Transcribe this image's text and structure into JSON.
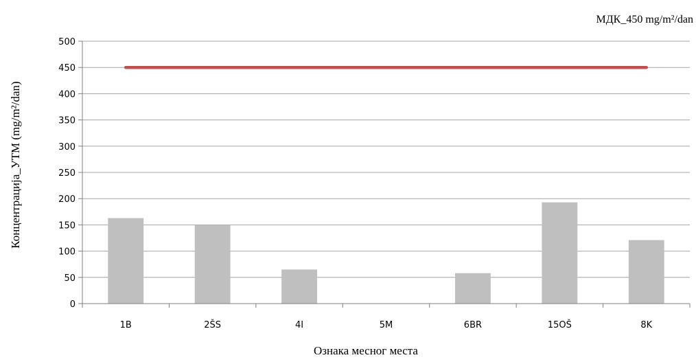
{
  "chart_data": {
    "type": "bar",
    "title": "",
    "xlabel": "Ознака месног места",
    "ylabel": "Концентрација_УТМ (mg/m²/dan)",
    "categories": [
      "1B",
      "2ŠS",
      "4I",
      "5M",
      "6BR",
      "15OŠ",
      "8K"
    ],
    "series": [
      {
        "values": [
          163,
          150,
          65,
          0,
          58,
          193,
          121
        ],
        "color": "#bfbfbf"
      }
    ],
    "reference_line": {
      "label": "МДК_450 mg/m²/dan",
      "value": 450,
      "color": "#c0504d"
    },
    "ylim": [
      0,
      500
    ],
    "yticks": [
      0,
      50,
      100,
      150,
      200,
      250,
      300,
      350,
      400,
      450,
      500
    ],
    "grid": true,
    "legend_position": "top-right"
  }
}
